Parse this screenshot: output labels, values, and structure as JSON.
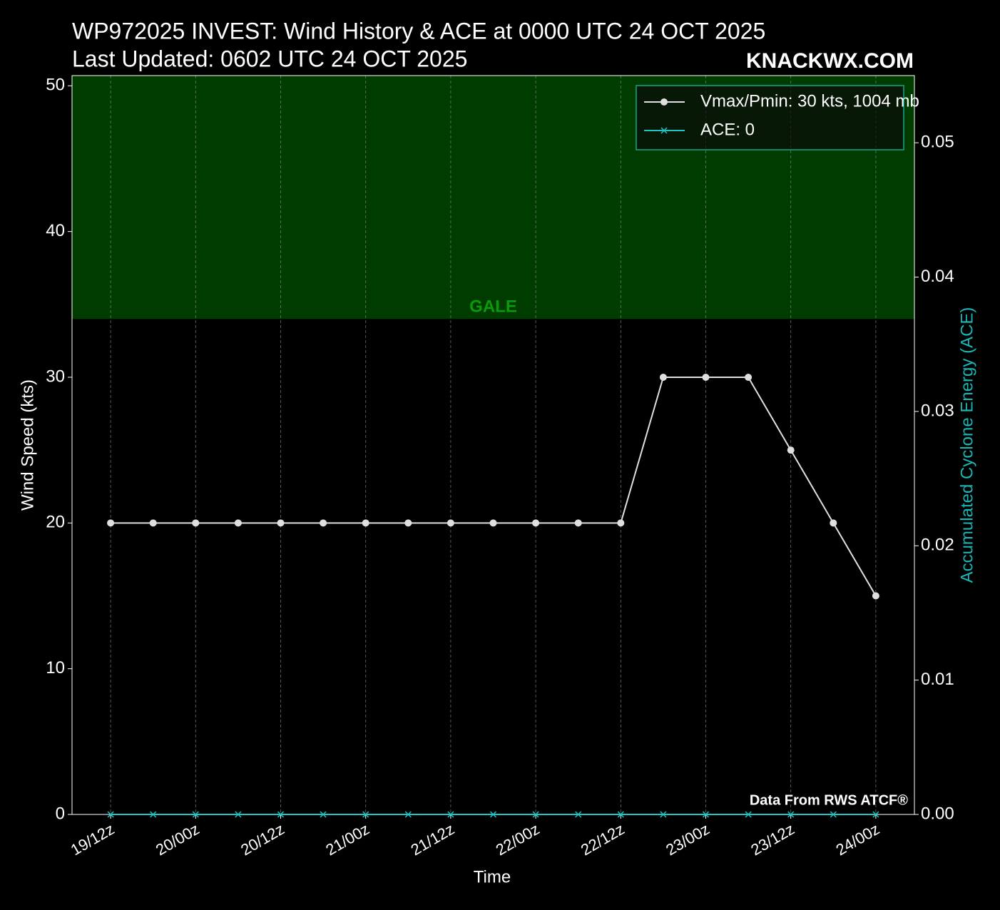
{
  "chart_data": {
    "type": "line",
    "title": "WP972025 INVEST: Wind History & ACE at 0000 UTC 24 OCT 2025",
    "subtitle": "Last Updated: 0602 UTC 24 OCT 2025",
    "brand": "KNACKWX.COM",
    "source": "Data From RWS ATCF®",
    "xlabel": "Time",
    "ylabel": "Wind Speed (kts)",
    "y2label": "Accumulated Cyclone Energy (ACE)",
    "categories": [
      "19/12z",
      null,
      "20/00z",
      null,
      "20/12z",
      null,
      "21/00z",
      null,
      "21/12z",
      null,
      "22/00z",
      null,
      "22/12z",
      null,
      "23/00z",
      null,
      "23/12z",
      null,
      "24/00z"
    ],
    "series": [
      {
        "name": "Vmax/Pmin: 30 kts, 1004 mb",
        "color": "#e0e0e0",
        "marker": "circle",
        "values": [
          20,
          20,
          20,
          20,
          20,
          20,
          20,
          20,
          20,
          20,
          20,
          20,
          20,
          30,
          30,
          30,
          25,
          20,
          15
        ]
      },
      {
        "name": "ACE: 0",
        "color": "#1fc4c4",
        "marker": "x",
        "axis": "y2",
        "values": [
          0,
          0,
          0,
          0,
          0,
          0,
          0,
          0,
          0,
          0,
          0,
          0,
          0,
          0,
          0,
          0,
          0,
          0,
          0
        ]
      }
    ],
    "bands": [
      {
        "label": "GALE",
        "from": 34,
        "color": "#003b00",
        "label_color": "#0a9a0a"
      }
    ],
    "ylim": [
      0,
      50.7
    ],
    "yticks": [
      0,
      10,
      20,
      30,
      40,
      50
    ],
    "y2lim": [
      0,
      0.055
    ],
    "y2ticks": [
      {
        "value": 0,
        "label": "0.00"
      },
      0.01,
      0.02,
      0.03,
      0.04,
      0.05
    ],
    "grid": true,
    "legend": "upper right"
  }
}
